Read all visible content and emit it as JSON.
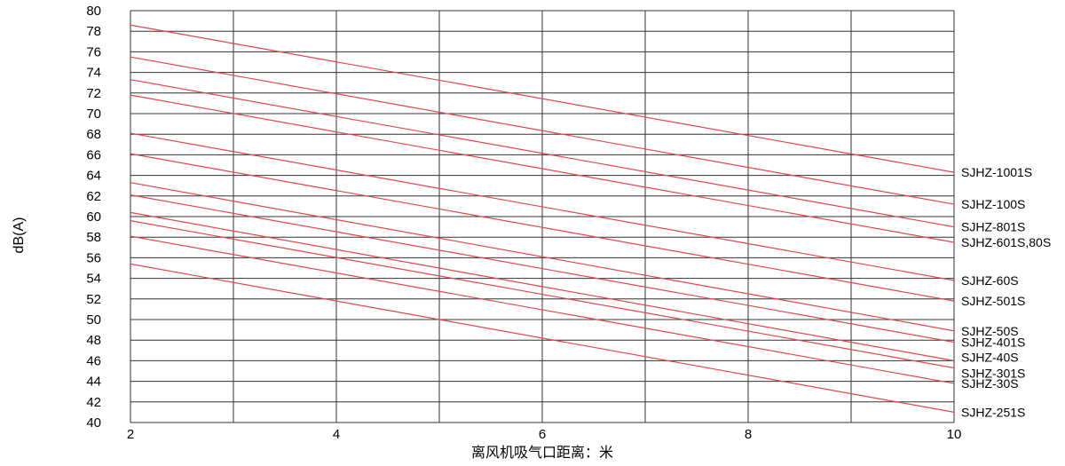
{
  "chart_data": {
    "type": "line",
    "title": "",
    "xlabel": "离风机吸气口距离：米",
    "ylabel": "dB(A)",
    "xlim": [
      2,
      10
    ],
    "ylim": [
      40,
      80
    ],
    "x_ticks": [
      2,
      4,
      6,
      8,
      10
    ],
    "y_ticks": [
      40,
      42,
      44,
      46,
      48,
      50,
      52,
      54,
      56,
      58,
      60,
      62,
      64,
      66,
      68,
      70,
      72,
      74,
      76,
      78,
      80
    ],
    "grid": true,
    "line_color": "#e0474c",
    "series": [
      {
        "name": "SJHZ-1001S",
        "x": [
          2,
          10
        ],
        "y": [
          78.6,
          64.3
        ]
      },
      {
        "name": "SJHZ-100S",
        "x": [
          2,
          10
        ],
        "y": [
          75.5,
          61.2
        ]
      },
      {
        "name": "SJHZ-801S",
        "x": [
          2,
          10
        ],
        "y": [
          73.3,
          59.0
        ]
      },
      {
        "name": "SJHZ-601S,80S",
        "x": [
          2,
          10
        ],
        "y": [
          71.8,
          57.5
        ]
      },
      {
        "name": "SJHZ-60S",
        "x": [
          2,
          10
        ],
        "y": [
          68.1,
          53.8
        ]
      },
      {
        "name": "SJHZ-501S",
        "x": [
          2,
          10
        ],
        "y": [
          66.1,
          51.8
        ]
      },
      {
        "name": "SJHZ-50S",
        "x": [
          2,
          10
        ],
        "y": [
          63.3,
          48.9
        ]
      },
      {
        "name": "SJHZ-401S",
        "x": [
          2,
          10
        ],
        "y": [
          62.1,
          47.8
        ]
      },
      {
        "name": "SJHZ-40S",
        "x": [
          2,
          10
        ],
        "y": [
          60.4,
          46.0
        ]
      },
      {
        "name": "SJHZ-301S",
        "x": [
          2,
          10
        ],
        "y": [
          59.6,
          45.3
        ]
      },
      {
        "name": "SJHZ-30S",
        "x": [
          2,
          10
        ],
        "y": [
          58.1,
          43.8
        ]
      },
      {
        "name": "SJHZ-251S",
        "x": [
          2,
          10
        ],
        "y": [
          55.4,
          41.0
        ]
      }
    ]
  }
}
